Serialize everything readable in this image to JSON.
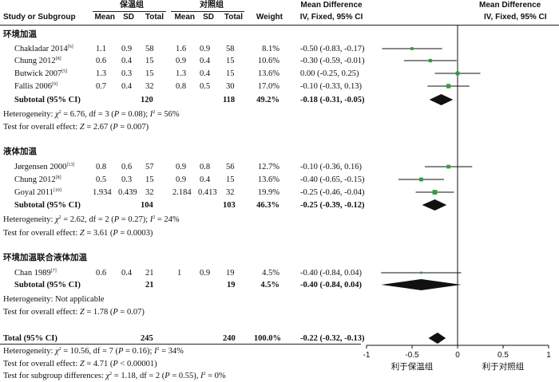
{
  "header": {
    "exp_group": "保温组",
    "ctl_group": "对照组",
    "col_study": "Study or Subgroup",
    "col_mean": "Mean",
    "col_sd": "SD",
    "col_total": "Total",
    "col_weight": "Weight",
    "col_md1": "Mean Difference",
    "col_md1_sub": "IV, Fixed, 95% CI",
    "col_md2": "Mean Difference",
    "col_md2_sub": "IV, Fixed, 95% CI"
  },
  "chart_data": {
    "type": "forest",
    "xlim": [
      -1,
      1
    ],
    "xticks": [
      "-1",
      "-0.5",
      "0",
      "0.5",
      "1"
    ],
    "favours_left": "利于保温组",
    "favours_right": "利于对照组",
    "subgroups": [
      {
        "name": "环境加温",
        "studies": [
          {
            "study": "Chakladar 2014",
            "ref": "[6]",
            "m1": "1.1",
            "sd1": "0.9",
            "n1": "58",
            "m2": "1.6",
            "sd2": "0.9",
            "n2": "58",
            "weight": "8.1%",
            "ci_text": "-0.50 (-0.83, -0.17)",
            "md": -0.5,
            "lo": -0.83,
            "hi": -0.17,
            "w": 8.1
          },
          {
            "study": "Chung 2012",
            "ref": "[8]",
            "m1": "0.6",
            "sd1": "0.4",
            "n1": "15",
            "m2": "0.9",
            "sd2": "0.4",
            "n2": "15",
            "weight": "10.6%",
            "ci_text": "-0.30 (-0.59, -0.01)",
            "md": -0.3,
            "lo": -0.59,
            "hi": -0.01,
            "w": 10.6
          },
          {
            "study": "Butwick 2007",
            "ref": "[5]",
            "m1": "1.3",
            "sd1": "0.3",
            "n1": "15",
            "m2": "1.3",
            "sd2": "0.4",
            "n2": "15",
            "weight": "13.6%",
            "ci_text": "0.00 (-0.25, 0.25)",
            "md": 0.0,
            "lo": -0.25,
            "hi": 0.25,
            "w": 13.6
          },
          {
            "study": "Fallis 2006",
            "ref": "[9]",
            "m1": "0.7",
            "sd1": "0.4",
            "n1": "32",
            "m2": "0.8",
            "sd2": "0.5",
            "n2": "30",
            "weight": "17.0%",
            "ci_text": "-0.10 (-0.33, 0.13)",
            "md": -0.1,
            "lo": -0.33,
            "hi": 0.13,
            "w": 17.0
          }
        ],
        "subtotal": {
          "label": "Subtotal (95% CI)",
          "n1": "120",
          "n2": "118",
          "weight": "49.2%",
          "ci_text": "-0.18 (-0.31, -0.05)",
          "md": -0.18,
          "lo": -0.31,
          "hi": -0.05
        },
        "heterogeneity": {
          "prefix": "Heterogeneity: ",
          "chi": "χ",
          "chi_rest": " = 6.76, df = 3 (",
          "p_rest": " = 0.08); ",
          "i2_rest": " = 56%"
        },
        "overall": {
          "prefix": "Test for overall effect: ",
          "z_rest": " = 2.67 (",
          "p_rest": " = 0.007)"
        }
      },
      {
        "name": "液体加温",
        "studies": [
          {
            "study": "Jørgensen 2000",
            "ref": "[13]",
            "m1": "0.8",
            "sd1": "0.6",
            "n1": "57",
            "m2": "0.9",
            "sd2": "0.8",
            "n2": "56",
            "weight": "12.7%",
            "ci_text": "-0.10 (-0.36, 0.16)",
            "md": -0.1,
            "lo": -0.36,
            "hi": 0.16,
            "w": 12.7
          },
          {
            "study": "Chung 2012",
            "ref": "[8]",
            "m1": "0.5",
            "sd1": "0.3",
            "n1": "15",
            "m2": "0.9",
            "sd2": "0.4",
            "n2": "15",
            "weight": "13.6%",
            "ci_text": "-0.40 (-0.65, -0.15)",
            "md": -0.4,
            "lo": -0.65,
            "hi": -0.15,
            "w": 13.6
          },
          {
            "study": "Goyal 2011",
            "ref": "[10]",
            "m1": "1.934",
            "sd1": "0.439",
            "n1": "32",
            "m2": "2.184",
            "sd2": "0.413",
            "n2": "32",
            "weight": "19.9%",
            "ci_text": "-0.25 (-0.46, -0.04)",
            "md": -0.25,
            "lo": -0.46,
            "hi": -0.04,
            "w": 19.9
          }
        ],
        "subtotal": {
          "label": "Subtotal (95% CI)",
          "n1": "104",
          "n2": "103",
          "weight": "46.3%",
          "ci_text": "-0.25 (-0.39, -0.12)",
          "md": -0.25,
          "lo": -0.39,
          "hi": -0.12
        },
        "heterogeneity": {
          "prefix": "Heterogeneity: ",
          "chi": "χ",
          "chi_rest": " = 2.62, df = 2 (",
          "p_rest": " = 0.27); ",
          "i2_rest": " = 24%"
        },
        "overall": {
          "prefix": "Test for overall effect: ",
          "z_rest": " = 3.61 (",
          "p_rest": " = 0.0003)"
        }
      },
      {
        "name": "环境加温联合液体加温",
        "studies": [
          {
            "study": "Chan 1989",
            "ref": "[7]",
            "m1": "0.6",
            "sd1": "0.4",
            "n1": "21",
            "m2": "1",
            "sd2": "0.9",
            "n2": "19",
            "weight": "4.5%",
            "ci_text": "-0.40 (-0.84, 0.04)",
            "md": -0.4,
            "lo": -0.84,
            "hi": 0.04,
            "w": 4.5
          }
        ],
        "subtotal": {
          "label": "Subtotal (95% CI)",
          "n1": "21",
          "n2": "19",
          "weight": "4.5%",
          "ci_text": "-0.40 (-0.84, 0.04)",
          "md": -0.4,
          "lo": -0.84,
          "hi": 0.04
        },
        "heterogeneity_text": "Heterogeneity: Not applicable",
        "overall": {
          "prefix": "Test for overall effect: ",
          "z_rest": " = 1.78 (",
          "p_rest": " = 0.07)"
        }
      }
    ],
    "total": {
      "label": "Total (95% CI)",
      "n1": "245",
      "n2": "240",
      "weight": "100.0%",
      "ci_text": "-0.22 (-0.32, -0.13)",
      "md": -0.22,
      "lo": -0.32,
      "hi": -0.13
    },
    "total_heterogeneity": {
      "prefix": "Heterogeneity: ",
      "chi": "χ",
      "chi_rest": " = 10.56, df = 7 (",
      "p_rest": " = 0.16); ",
      "i2_rest": " = 34%"
    },
    "total_overall": {
      "prefix": "Test for overall effect: ",
      "z_rest": " = 4.71 (",
      "p_rest": " < 0.00001)"
    },
    "subgroup_diff": {
      "prefix": "Test for subgroup differences: ",
      "chi": "χ",
      "chi_rest": " = 1.18, df = 2 (",
      "p_rest": " = 0.55), ",
      "i2_rest": " = 0%"
    }
  }
}
